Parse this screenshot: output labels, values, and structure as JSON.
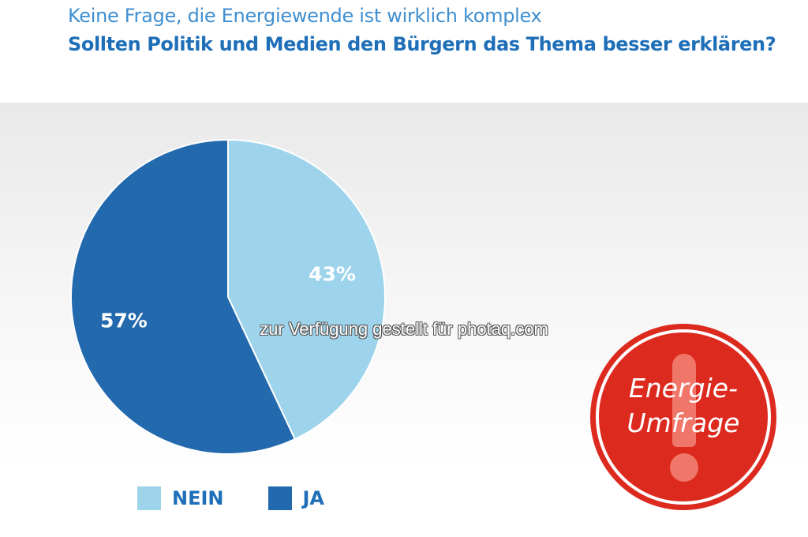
{
  "chart_data": {
    "type": "pie",
    "subtitle": "Keine Frage, die Energiewende ist wirklich komplex",
    "title": "Sollten Politik und Medien den Bürgern das Thema besser erklären?",
    "slices": [
      {
        "label": "NEIN",
        "value": 43,
        "value_label": "43%",
        "color": "#9dd4ec"
      },
      {
        "label": "JA",
        "value": 57,
        "value_label": "57%",
        "color": "#2369ad"
      }
    ],
    "legend_position": "bottom-left"
  },
  "watermark": "zur Verfügung gestellt für photaq.com",
  "badge": {
    "line1": "Energie-",
    "line2": "Umfrage",
    "color": "#dd2a1f"
  }
}
